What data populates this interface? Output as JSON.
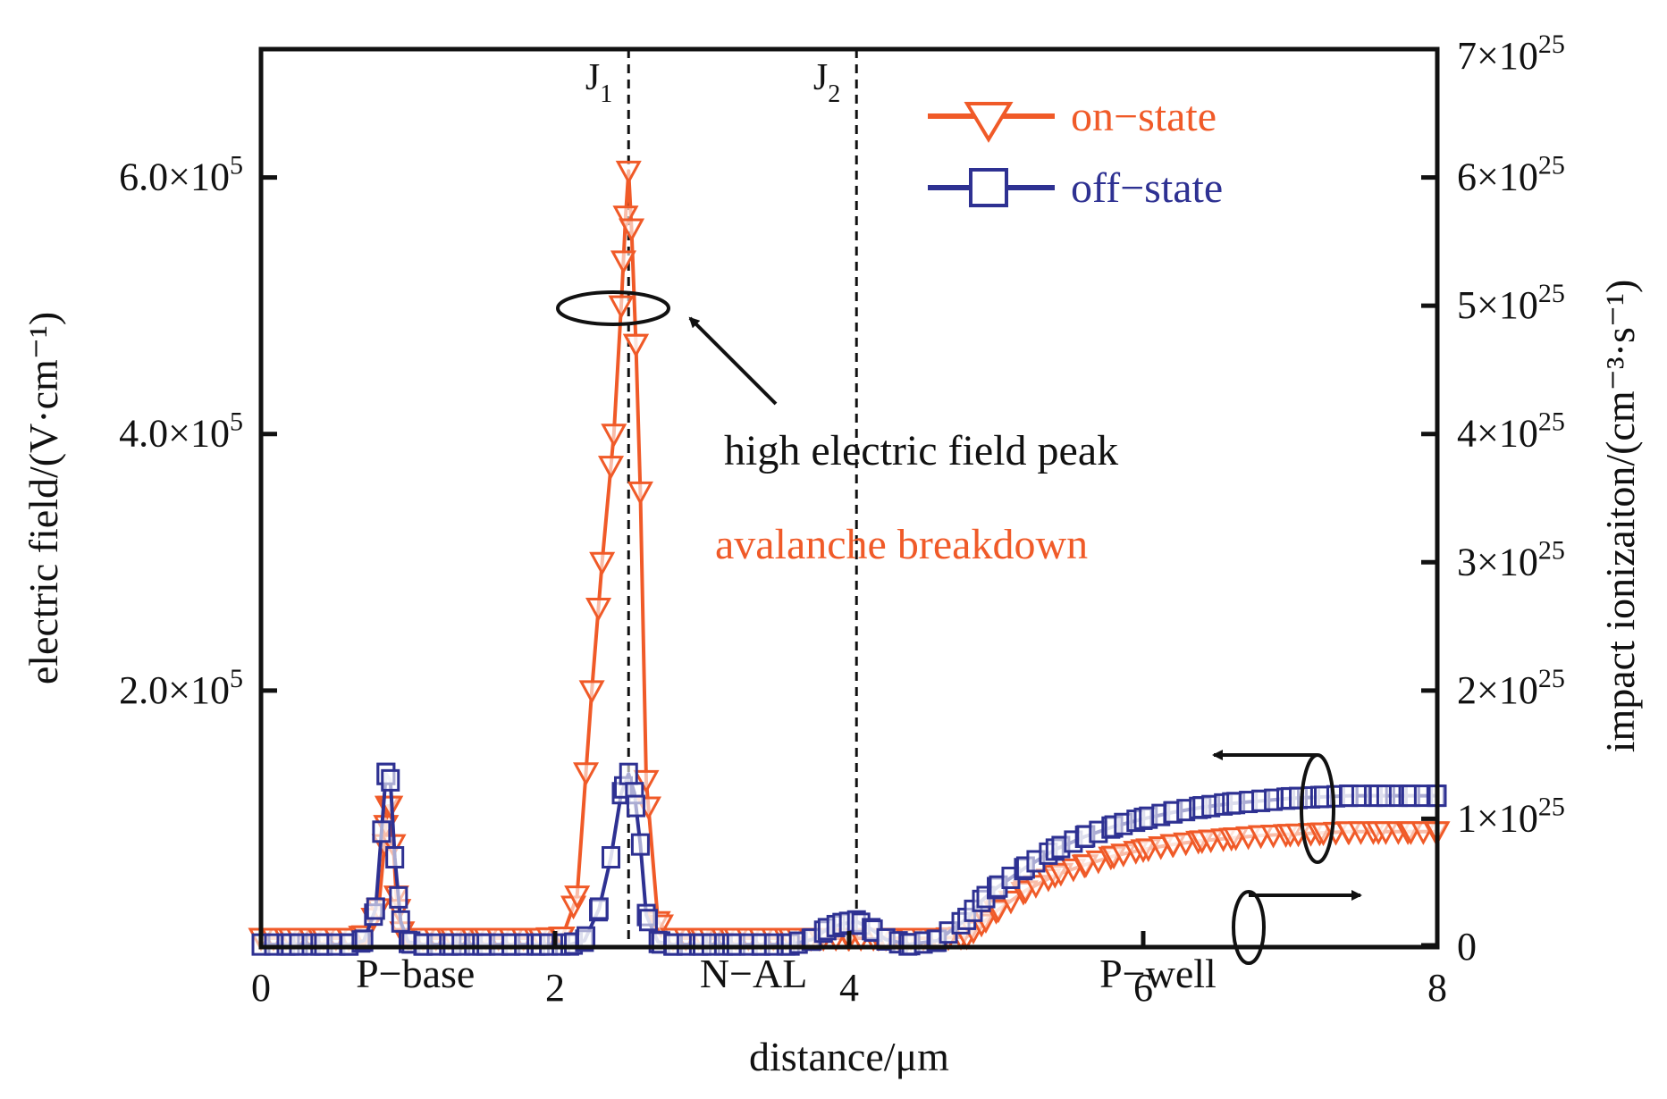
{
  "chart_data": {
    "type": "line",
    "title": "",
    "xlabel": "distance/μm",
    "ylabel_left": "electric field/(V·cm⁻¹)",
    "ylabel_right": "impact ionizaiton/(cm⁻³·s⁻¹)",
    "xlim": [
      0,
      8
    ],
    "ylim_left": [
      0,
      700000
    ],
    "ylim_right": [
      0,
      7e+25
    ],
    "x_ticks": [
      0,
      2,
      4,
      6,
      8
    ],
    "x_tick_labels": [
      "0",
      "2",
      "4",
      "6",
      "8"
    ],
    "y_left_ticks": [
      200000,
      400000,
      600000
    ],
    "y_left_tick_labels": [
      {
        "mant": "2.0×10",
        "exp": "5"
      },
      {
        "mant": "4.0×10",
        "exp": "5"
      },
      {
        "mant": "6.0×10",
        "exp": "5"
      }
    ],
    "y_right_ticks": [
      0,
      1e+25,
      2e+25,
      3e+25,
      4e+25,
      5e+25,
      6e+25,
      7e+25
    ],
    "y_right_tick_labels": [
      {
        "mant": "0",
        "exp": ""
      },
      {
        "mant": "1×10",
        "exp": "25"
      },
      {
        "mant": "2×10",
        "exp": "25"
      },
      {
        "mant": "3×10",
        "exp": "25"
      },
      {
        "mant": "4×10",
        "exp": "25"
      },
      {
        "mant": "5×10",
        "exp": "25"
      },
      {
        "mant": "6×10",
        "exp": "25"
      },
      {
        "mant": "7×10",
        "exp": "25"
      }
    ],
    "junctions": [
      {
        "label": "J",
        "sub": "1",
        "x": 2.5
      },
      {
        "label": "J",
        "sub": "2",
        "x": 4.05
      }
    ],
    "regions": [
      {
        "label": "P−base",
        "x": 1.05
      },
      {
        "label": "N−AL",
        "x": 3.35
      },
      {
        "label": "P−well",
        "x": 6.1
      }
    ],
    "legend_position": "top-right",
    "series": [
      {
        "name": "on−state",
        "color": "#f05a28",
        "marker": "triangle-down",
        "x": [
          0,
          0.2,
          0.4,
          0.6,
          0.7,
          0.8,
          0.84,
          0.86,
          0.88,
          0.9,
          0.92,
          0.96,
          1.0,
          1.1,
          1.3,
          1.5,
          1.7,
          1.9,
          2.05,
          2.15,
          2.25,
          2.32,
          2.4,
          2.45,
          2.48,
          2.5,
          2.52,
          2.55,
          2.58,
          2.62,
          2.7,
          2.8,
          3.0,
          3.2,
          3.4,
          3.6,
          3.8,
          4.0,
          4.2,
          4.4,
          4.6,
          4.8,
          4.9,
          5.0,
          5.2,
          5.4,
          5.6,
          5.8,
          6.0,
          6.2,
          6.4,
          6.6,
          6.8,
          7.0,
          7.2,
          7.4,
          7.6,
          7.8,
          8.0
        ],
        "y": [
          7000,
          7000,
          7000,
          7000,
          9000,
          30000,
          80000,
          110000,
          110000,
          80000,
          40000,
          12000,
          7000,
          7000,
          7000,
          7000,
          7000,
          7000,
          8000,
          40000,
          200000,
          300000,
          400000,
          500000,
          570000,
          605000,
          560000,
          470000,
          355000,
          130000,
          20000,
          7000,
          7000,
          7000,
          7000,
          7000,
          7000,
          7000,
          7000,
          7000,
          7000,
          8000,
          18000,
          28000,
          44000,
          56000,
          64000,
          71000,
          76000,
          80000,
          83000,
          85000,
          87000,
          88000,
          89000,
          90000,
          90000,
          90000,
          90000
        ]
      },
      {
        "name": "off−state",
        "color": "#2e3192",
        "marker": "square",
        "x": [
          0,
          0.2,
          0.4,
          0.6,
          0.7,
          0.78,
          0.82,
          0.85,
          0.88,
          0.91,
          0.95,
          1.0,
          1.1,
          1.3,
          1.5,
          1.7,
          1.9,
          2.1,
          2.2,
          2.3,
          2.38,
          2.45,
          2.5,
          2.54,
          2.58,
          2.62,
          2.7,
          2.8,
          3.0,
          3.2,
          3.4,
          3.6,
          3.75,
          3.85,
          3.95,
          4.05,
          4.15,
          4.25,
          4.4,
          4.6,
          4.8,
          4.9,
          5.0,
          5.2,
          5.4,
          5.6,
          5.8,
          6.0,
          6.2,
          6.4,
          6.6,
          6.8,
          7.0,
          7.2,
          7.4,
          7.6,
          7.8,
          8.0
        ],
        "y": [
          2e+23,
          2e+23,
          2e+23,
          2e+23,
          5e+23,
          3e+24,
          9e+24,
          1.35e+25,
          1.3e+25,
          7e+24,
          2e+24,
          4e+23,
          2e+23,
          2e+23,
          2e+23,
          2e+23,
          2e+23,
          2e+23,
          5e+23,
          3e+24,
          7e+24,
          1.2e+25,
          1.35e+25,
          1.2e+25,
          8e+24,
          2.5e+24,
          4e+23,
          2e+23,
          2e+23,
          2e+23,
          2e+23,
          2e+23,
          6e+23,
          1.4e+24,
          1.8e+24,
          2e+24,
          1.4e+24,
          6e+23,
          2e+23,
          5e+23,
          2.2e+24,
          3.6e+24,
          4.6e+24,
          6.2e+24,
          7.6e+24,
          8.6e+24,
          9.4e+24,
          1e+25,
          1.05e+25,
          1.09e+25,
          1.12e+25,
          1.14e+25,
          1.16e+25,
          1.17e+25,
          1.18e+25,
          1.18e+25,
          1.18e+25,
          1.18e+25
        ]
      }
    ],
    "annotations": [
      {
        "text": "high electric field peak",
        "color": "#111111"
      },
      {
        "text": "avalanche breakdown",
        "color": "#f05a28"
      }
    ]
  }
}
